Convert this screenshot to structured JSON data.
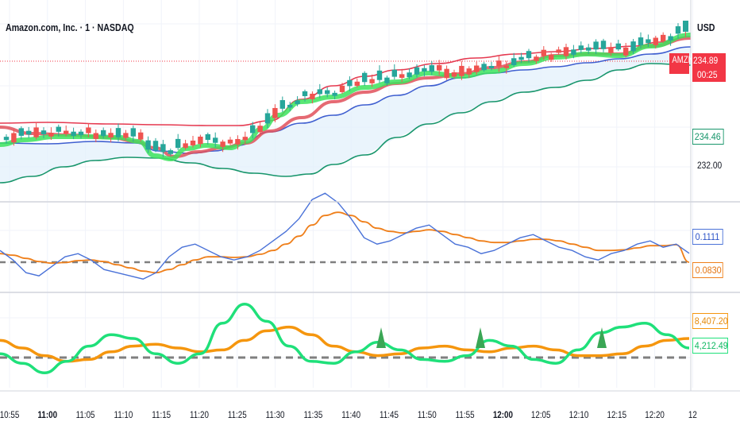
{
  "header": {
    "title": "Amazon.com, Inc. · 1 · NASDAQ",
    "currency": "USD"
  },
  "colors": {
    "up": "#26a69a",
    "down": "#ef5350",
    "upper_band": "#e53950",
    "lower_band": "#17956b",
    "mid_band": "#3f5fd0",
    "fast_ma": "#3ce35d",
    "slow_ma": "#e0505a",
    "macd": "#4a72d8",
    "signal": "#ef7f1a",
    "osc_green": "#1fe07a",
    "osc_orange": "#f5960e",
    "zero_line": "#7f7f7f"
  },
  "price_labels": {
    "symbol": "AMZN",
    "last_price": "234.89",
    "countdown": "00:25",
    "band_value": "234.46",
    "tick_232": "232.00"
  },
  "macd_labels": {
    "macd": "0.1111",
    "signal": "0.0830"
  },
  "osc_labels": {
    "orange": "8,407.20",
    "green": "4,212.49"
  },
  "x_axis": {
    "ticks": [
      "10:55",
      "11:00",
      "11:05",
      "11:10",
      "11:15",
      "11:20",
      "11:25",
      "11:30",
      "11:35",
      "11:40",
      "11:45",
      "11:50",
      "11:55",
      "12:00",
      "12:05",
      "12:10",
      "12:15",
      "12:20",
      "12"
    ],
    "bold": [
      "11:00",
      "12:00"
    ]
  },
  "chart_data": [
    {
      "type": "candlestick",
      "title": "Amazon.com, Inc. · 1 · NASDAQ",
      "y_axis_label": "232.00",
      "last_price": 234.89,
      "band_value": 234.46,
      "x_range": [
        "10:54",
        "12:25"
      ],
      "overlays": [
        "upper band",
        "lower band",
        "middle line",
        "fast MA",
        "slow MA"
      ]
    },
    {
      "type": "line",
      "series": [
        {
          "values": [
            0.12,
            0.09,
            0.05,
            0.04,
            0.07,
            0.1,
            0.11,
            0.09,
            0.06,
            0.05,
            0.04,
            0.03,
            0.05,
            0.1,
            0.13,
            0.14,
            0.12,
            0.1,
            0.09,
            0.1,
            0.12,
            0.15,
            0.18,
            0.22,
            0.28,
            0.3,
            0.27,
            0.22,
            0.16,
            0.14,
            0.15,
            0.17,
            0.19,
            0.2,
            0.17,
            0.14,
            0.13,
            0.11,
            0.12,
            0.14,
            0.16,
            0.17,
            0.15,
            0.13,
            0.12,
            0.1,
            0.09,
            0.11,
            0.12,
            0.14,
            0.15,
            0.13,
            0.14,
            0.1111
          ]
        },
        {
          "values": [
            0.11,
            0.105,
            0.095,
            0.085,
            0.08,
            0.082,
            0.088,
            0.09,
            0.085,
            0.075,
            0.065,
            0.055,
            0.05,
            0.06,
            0.075,
            0.09,
            0.1,
            0.1,
            0.098,
            0.1,
            0.108,
            0.12,
            0.14,
            0.165,
            0.2,
            0.23,
            0.24,
            0.23,
            0.21,
            0.19,
            0.18,
            0.175,
            0.18,
            0.185,
            0.18,
            0.17,
            0.16,
            0.15,
            0.145,
            0.145,
            0.15,
            0.155,
            0.155,
            0.15,
            0.14,
            0.13,
            0.12,
            0.12,
            0.122,
            0.128,
            0.135,
            0.135,
            0.138,
            0.083
          ]
        }
      ],
      "labels": {
        "macd": 0.1111,
        "signal": 0.083
      }
    },
    {
      "type": "line",
      "series": [
        {
          "values": [
            0.2,
            -0.3,
            -0.8,
            -0.2,
            0.6,
            1.2,
            1.0,
            0.2,
            -0.3,
            0.2,
            1.8,
            2.8,
            1.9,
            0.6,
            -0.2,
            -0.3,
            0.3,
            0.8,
            0.4,
            -0.1,
            -0.2,
            0.1,
            0.9,
            0.6,
            -0.1,
            -0.3,
            0.4,
            1.3,
            1.6,
            1.8,
            1.2,
            0.5
          ]
        },
        {
          "values": [
            0.9,
            0.5,
            0.1,
            -0.2,
            -0.1,
            0.3,
            0.6,
            0.7,
            0.5,
            0.3,
            0.4,
            0.9,
            1.4,
            1.6,
            1.2,
            0.6,
            0.3,
            0.1,
            0.2,
            0.5,
            0.6,
            0.4,
            0.3,
            0.5,
            0.6,
            0.4,
            0.1,
            0.1,
            0.2,
            0.6,
            0.9,
            1.0
          ]
        }
      ],
      "labels": {
        "orange": "8,407.20",
        "green": "4,212.49"
      }
    }
  ]
}
